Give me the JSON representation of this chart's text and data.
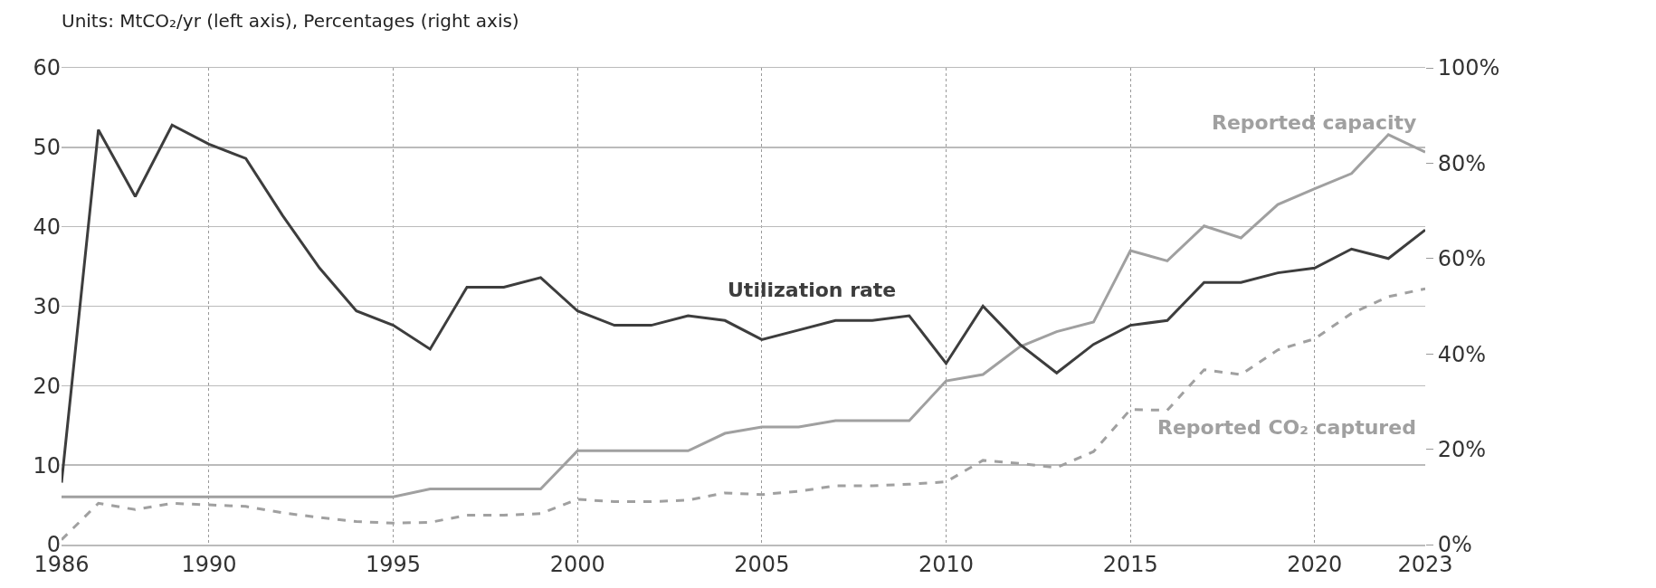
{
  "chart_data": {
    "type": "line",
    "title": "Units: MtCO₂/yr (left axis), Percentages (right axis)",
    "x": [
      1986,
      1987,
      1988,
      1989,
      1990,
      1991,
      1992,
      1993,
      1994,
      1995,
      1996,
      1997,
      1998,
      1999,
      2000,
      2001,
      2002,
      2003,
      2004,
      2005,
      2006,
      2007,
      2008,
      2009,
      2010,
      2011,
      2012,
      2013,
      2014,
      2015,
      2016,
      2017,
      2018,
      2019,
      2020,
      2021,
      2022,
      2023
    ],
    "series": [
      {
        "name": "Utilization rate",
        "color": "#3d3d3d",
        "axis": "y2",
        "line_style": "solid",
        "values": [
          13,
          87,
          73,
          88,
          84,
          81,
          69,
          58,
          49,
          46,
          41,
          54,
          54,
          56,
          49,
          46,
          46,
          48,
          47,
          43,
          45,
          47,
          47,
          48,
          38,
          50,
          42,
          36,
          42,
          46,
          47,
          55,
          55,
          57,
          58,
          62,
          60,
          66
        ]
      },
      {
        "name": "Reported capacity",
        "color": "#a0a0a0",
        "line_style": "solid",
        "values": [
          6,
          6,
          6,
          6,
          6,
          6,
          6,
          6,
          6,
          6,
          7,
          7,
          7,
          7,
          11.8,
          11.8,
          11.8,
          11.8,
          14,
          14.8,
          14.8,
          15.6,
          15.6,
          15.6,
          20.6,
          21.4,
          24.9,
          26.8,
          28,
          37,
          35.7,
          40.1,
          38.6,
          42.8,
          44.8,
          46.7,
          51.6,
          49.4
        ]
      },
      {
        "name": "Reported CO₂ captured",
        "color": "#a0a0a0",
        "line_style": "dashed",
        "values": [
          0.6,
          5.2,
          4.4,
          5.2,
          5,
          4.8,
          4,
          3.4,
          2.9,
          2.7,
          2.8,
          3.7,
          3.7,
          3.9,
          5.7,
          5.4,
          5.4,
          5.6,
          6.5,
          6.3,
          6.7,
          7.4,
          7.4,
          7.6,
          7.9,
          10.6,
          10.2,
          9.7,
          11.7,
          17,
          16.9,
          22,
          21.4,
          24.5,
          25.9,
          29.1,
          31.2,
          32.2
        ]
      }
    ],
    "xlim": [
      1986,
      2023
    ],
    "xticks": [
      1986,
      1990,
      1995,
      2000,
      2005,
      2010,
      2015,
      2020,
      2023
    ],
    "ylim": [
      0,
      60
    ],
    "yticks": [
      0,
      10,
      20,
      30,
      40,
      50,
      60
    ],
    "y2lim": [
      0,
      100
    ],
    "y2ticks": [
      {
        "value": 0,
        "label": "0%"
      },
      {
        "value": 20,
        "label": "20%"
      },
      {
        "value": 40,
        "label": "40%"
      },
      {
        "value": 60,
        "label": "60%"
      },
      {
        "value": 80,
        "label": "80%"
      },
      {
        "value": 100,
        "label": "100%"
      }
    ],
    "grid": true,
    "legend": false,
    "marker": "none"
  }
}
